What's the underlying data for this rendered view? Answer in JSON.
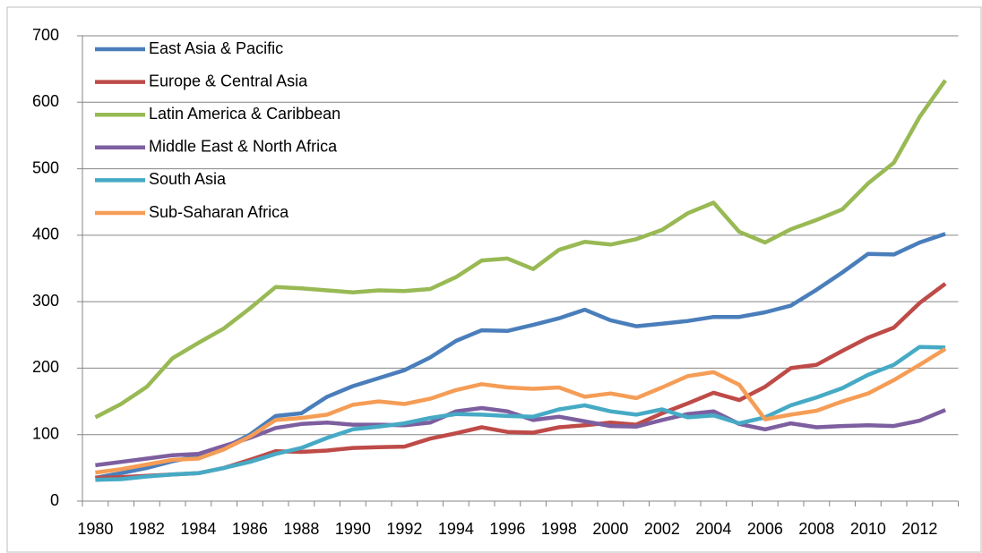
{
  "chart_data": {
    "type": "line",
    "categories": [
      1980,
      null,
      1982,
      null,
      1984,
      null,
      1986,
      null,
      1988,
      null,
      1990,
      null,
      1992,
      null,
      1994,
      null,
      1996,
      null,
      1998,
      null,
      2000,
      null,
      2002,
      null,
      2004,
      null,
      2006,
      null,
      2008,
      null,
      2010,
      null,
      2012,
      null
    ],
    "ylim": [
      0,
      700
    ],
    "yticks": [
      0,
      100,
      200,
      300,
      400,
      500,
      600,
      700
    ],
    "grid": true,
    "legend": "upper-left",
    "series": [
      {
        "name": "East Asia & Pacific",
        "color": "#4a7ebb",
        "values": [
          35,
          42,
          50,
          60,
          68,
          80,
          100,
          128,
          132,
          157,
          173,
          185,
          197,
          216,
          241,
          257,
          256,
          265,
          275,
          288,
          272,
          263,
          267,
          271,
          277,
          277,
          284,
          294,
          318,
          344,
          372,
          371,
          389,
          402
        ]
      },
      {
        "name": "Europe & Central Asia",
        "color": "#be4b48",
        "values": [
          35,
          36,
          38,
          40,
          42,
          50,
          62,
          75,
          74,
          76,
          80,
          81,
          82,
          94,
          102,
          111,
          104,
          103,
          111,
          114,
          118,
          115,
          132,
          147,
          163,
          152,
          172,
          200,
          205,
          226,
          246,
          261,
          298,
          327
        ]
      },
      {
        "name": "Latin America & Caribbean",
        "color": "#98b954",
        "values": [
          126,
          146,
          172,
          215,
          238,
          260,
          290,
          322,
          320,
          317,
          314,
          317,
          316,
          319,
          337,
          362,
          365,
          349,
          378,
          390,
          386,
          394,
          408,
          433,
          449,
          405,
          389,
          409,
          423,
          439,
          478,
          509,
          578,
          633
        ]
      },
      {
        "name": "Middle East & North Africa",
        "color": "#7d5fa0",
        "values": [
          54,
          59,
          64,
          69,
          71,
          83,
          95,
          110,
          116,
          118,
          115,
          115,
          114,
          118,
          135,
          140,
          135,
          122,
          127,
          120,
          113,
          112,
          122,
          131,
          135,
          116,
          108,
          117,
          111,
          113,
          114,
          113,
          121,
          137
        ]
      },
      {
        "name": "South Asia",
        "color": "#46aac5",
        "values": [
          32,
          33,
          37,
          40,
          42,
          50,
          59,
          71,
          80,
          95,
          108,
          112,
          117,
          125,
          131,
          130,
          128,
          127,
          138,
          144,
          135,
          130,
          138,
          126,
          129,
          117,
          126,
          144,
          156,
          170,
          190,
          205,
          232,
          231
        ]
      },
      {
        "name": "Sub-Saharan Africa",
        "color": "#f59d56",
        "values": [
          43,
          48,
          55,
          62,
          64,
          78,
          97,
          122,
          125,
          130,
          145,
          150,
          146,
          154,
          167,
          176,
          171,
          169,
          171,
          157,
          162,
          155,
          171,
          188,
          194,
          175,
          123,
          130,
          136,
          150,
          162,
          182,
          205,
          229
        ]
      }
    ]
  }
}
